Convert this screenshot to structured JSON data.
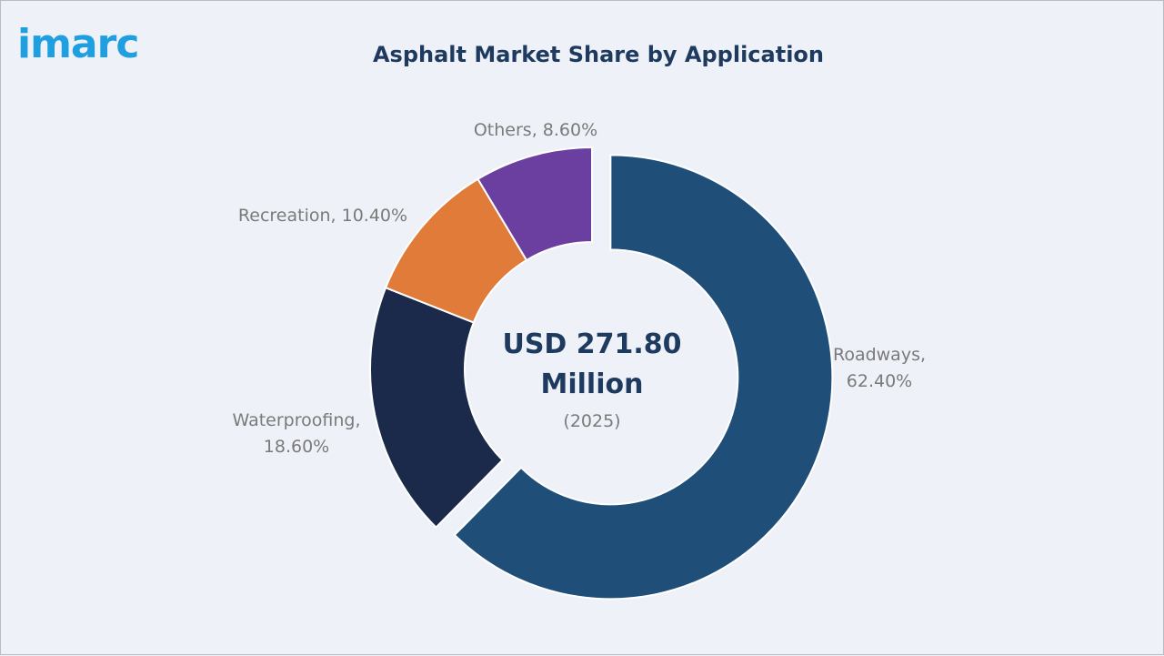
{
  "brand": {
    "logo_text": "imarc",
    "logo_color": "#1f9fe0"
  },
  "chart_data": {
    "type": "pie",
    "variant": "donut",
    "title": "Asphalt Market Share by Application",
    "unit": "%",
    "center_text": {
      "line1": "USD 271.80",
      "line2": "Million",
      "line3": "(2025)"
    },
    "slices": [
      {
        "name": "Roadways",
        "value": 62.4,
        "label_line1": "Roadways,",
        "label_line2": "62.40%",
        "color": "#1f4e79",
        "exploded": true
      },
      {
        "name": "Waterproofing",
        "value": 18.6,
        "label_line1": "Waterproofing,",
        "label_line2": "18.60%",
        "color": "#1b2a4a",
        "exploded": false
      },
      {
        "name": "Recreation",
        "value": 10.4,
        "label_line1": "Recreation, 10.40%",
        "label_line2": "",
        "color": "#e07b39",
        "exploded": false
      },
      {
        "name": "Others",
        "value": 8.6,
        "label_line1": "Others, 8.60%",
        "label_line2": "",
        "color": "#6b3fa0",
        "exploded": false
      }
    ]
  }
}
